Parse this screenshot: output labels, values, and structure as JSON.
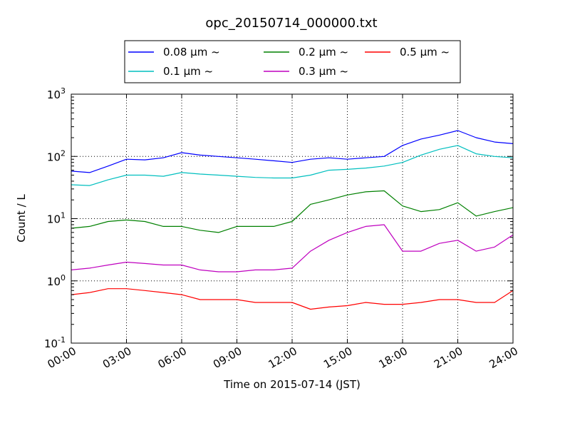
{
  "chart_data": {
    "type": "line",
    "title": "opc_20150714_000000.txt",
    "xlabel": "Time on 2015-07-14 (JST)",
    "ylabel": "Count / L",
    "yscale": "log",
    "ylim": [
      0.1,
      1000
    ],
    "xlim": [
      "00:00",
      "24:00"
    ],
    "x_ticks": [
      "00:00",
      "03:00",
      "06:00",
      "09:00",
      "12:00",
      "15:00",
      "18:00",
      "21:00",
      "24:00"
    ],
    "y_ticks": [
      {
        "base": "10",
        "exp": "-1"
      },
      {
        "base": "10",
        "exp": "0"
      },
      {
        "base": "10",
        "exp": "1"
      },
      {
        "base": "10",
        "exp": "2"
      },
      {
        "base": "10",
        "exp": "3"
      }
    ],
    "grid": true,
    "legend_position": "top, outside plot",
    "x": [
      "00:00",
      "01:00",
      "02:00",
      "03:00",
      "04:00",
      "05:00",
      "06:00",
      "07:00",
      "08:00",
      "09:00",
      "10:00",
      "11:00",
      "12:00",
      "13:00",
      "14:00",
      "15:00",
      "16:00",
      "17:00",
      "18:00",
      "19:00",
      "20:00",
      "21:00",
      "22:00",
      "23:00",
      "24:00"
    ],
    "series": [
      {
        "name": "0.08 μm ~",
        "color": "#0000ff",
        "values": [
          58,
          55,
          70,
          90,
          88,
          95,
          115,
          105,
          100,
          95,
          90,
          85,
          80,
          90,
          95,
          90,
          95,
          100,
          150,
          190,
          220,
          260,
          200,
          170,
          160
        ]
      },
      {
        "name": "0.1 μm ~",
        "color": "#00bfbf",
        "values": [
          35,
          34,
          42,
          50,
          50,
          48,
          55,
          52,
          50,
          48,
          46,
          45,
          45,
          50,
          60,
          62,
          65,
          70,
          80,
          105,
          130,
          150,
          110,
          100,
          95
        ]
      },
      {
        "name": "0.2 μm ~",
        "color": "#008000",
        "values": [
          7,
          7.5,
          9,
          9.5,
          9,
          7.5,
          7.5,
          6.5,
          6,
          7.5,
          7.5,
          7.5,
          9,
          17,
          20,
          24,
          27,
          28,
          16,
          13,
          14,
          18,
          11,
          13,
          15
        ]
      },
      {
        "name": "0.3 μm ~",
        "color": "#bf00bf",
        "values": [
          1.5,
          1.6,
          1.8,
          2.0,
          1.9,
          1.8,
          1.8,
          1.5,
          1.4,
          1.4,
          1.5,
          1.5,
          1.6,
          3.0,
          4.5,
          6.0,
          7.5,
          8.0,
          3.0,
          3.0,
          4.0,
          4.5,
          3.0,
          3.5,
          5.5
        ]
      },
      {
        "name": "0.5 μm ~",
        "color": "#ff0000",
        "values": [
          0.6,
          0.65,
          0.75,
          0.75,
          0.7,
          0.65,
          0.6,
          0.5,
          0.5,
          0.5,
          0.45,
          0.45,
          0.45,
          0.35,
          0.38,
          0.4,
          0.45,
          0.42,
          0.42,
          0.45,
          0.5,
          0.5,
          0.45,
          0.45,
          0.7
        ]
      }
    ]
  }
}
